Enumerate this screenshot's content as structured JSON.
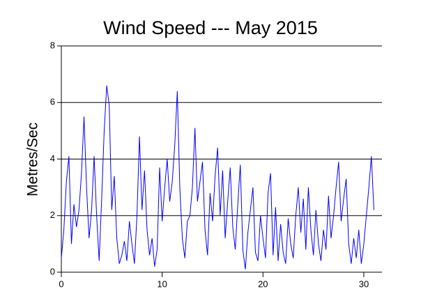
{
  "chart_data": {
    "type": "line",
    "title": "Wind Speed --- May 2015",
    "y_label": "Metres/Sec",
    "x": [
      0,
      0.25,
      0.5,
      0.75,
      1,
      1.25,
      1.5,
      1.75,
      2,
      2.25,
      2.5,
      2.75,
      3,
      3.25,
      3.5,
      3.75,
      4,
      4.25,
      4.5,
      4.75,
      5,
      5.25,
      5.5,
      5.75,
      6,
      6.25,
      6.5,
      6.75,
      7,
      7.25,
      7.5,
      7.75,
      8,
      8.25,
      8.5,
      8.75,
      9,
      9.25,
      9.5,
      9.75,
      10,
      10.25,
      10.5,
      10.75,
      11,
      11.25,
      11.5,
      11.75,
      12,
      12.25,
      12.5,
      12.75,
      13,
      13.25,
      13.5,
      13.75,
      14,
      14.25,
      14.5,
      14.75,
      15,
      15.25,
      15.5,
      15.75,
      16,
      16.25,
      16.5,
      16.75,
      17,
      17.25,
      17.5,
      17.75,
      18,
      18.25,
      18.5,
      18.75,
      19,
      19.25,
      19.5,
      19.75,
      20,
      20.25,
      20.5,
      20.75,
      21,
      21.25,
      21.5,
      21.75,
      22,
      22.25,
      22.5,
      22.75,
      23,
      23.25,
      23.5,
      23.75,
      24,
      24.25,
      24.5,
      24.75,
      25,
      25.25,
      25.5,
      25.75,
      26,
      26.25,
      26.5,
      26.75,
      27,
      27.25,
      27.5,
      27.75,
      28,
      28.25,
      28.5,
      28.75,
      29,
      29.25,
      29.5,
      29.75,
      30,
      30.25,
      30.5,
      30.75,
      31
    ],
    "series": [
      {
        "name": "Wind Speed",
        "color": "#0000ff",
        "values": [
          0.5,
          1.5,
          3.2,
          4.1,
          1.0,
          2.4,
          1.6,
          2.2,
          3.5,
          5.5,
          3.0,
          1.2,
          2.2,
          4.1,
          2.0,
          0.4,
          2.6,
          5.0,
          6.6,
          5.9,
          2.2,
          3.4,
          1.2,
          0.3,
          0.6,
          1.1,
          0.4,
          1.8,
          1.0,
          0.3,
          2.0,
          4.8,
          2.2,
          3.6,
          1.5,
          0.6,
          1.2,
          0.2,
          0.8,
          3.7,
          1.8,
          3.0,
          4.0,
          2.5,
          3.2,
          4.5,
          6.4,
          3.0,
          1.2,
          0.5,
          1.8,
          2.0,
          3.0,
          5.1,
          2.5,
          3.2,
          3.9,
          1.5,
          0.6,
          2.8,
          1.8,
          3.4,
          4.4,
          2.0,
          3.6,
          1.2,
          2.5,
          3.7,
          1.6,
          0.8,
          2.4,
          3.8,
          0.8,
          0.1,
          1.4,
          2.2,
          3.0,
          0.7,
          0.4,
          2.0,
          1.2,
          0.5,
          2.8,
          3.5,
          0.6,
          2.3,
          0.4,
          1.7,
          0.7,
          0.3,
          1.9,
          1.0,
          0.5,
          2.0,
          3.0,
          1.4,
          2.6,
          0.8,
          3.0,
          1.5,
          0.6,
          2.2,
          1.0,
          0.4,
          1.5,
          0.8,
          2.7,
          1.2,
          2.0,
          3.0,
          3.9,
          1.8,
          2.6,
          3.3,
          1.0,
          0.3,
          1.2,
          0.5,
          1.5,
          0.3,
          1.0,
          2.0,
          3.0,
          4.1,
          2.2
        ]
      }
    ],
    "xlim": [
      0,
      31.8
    ],
    "xticks": [
      0,
      10,
      20,
      30
    ],
    "ylim": [
      0,
      8
    ],
    "yticks": [
      0,
      2,
      4,
      6,
      8
    ],
    "grid": true
  }
}
